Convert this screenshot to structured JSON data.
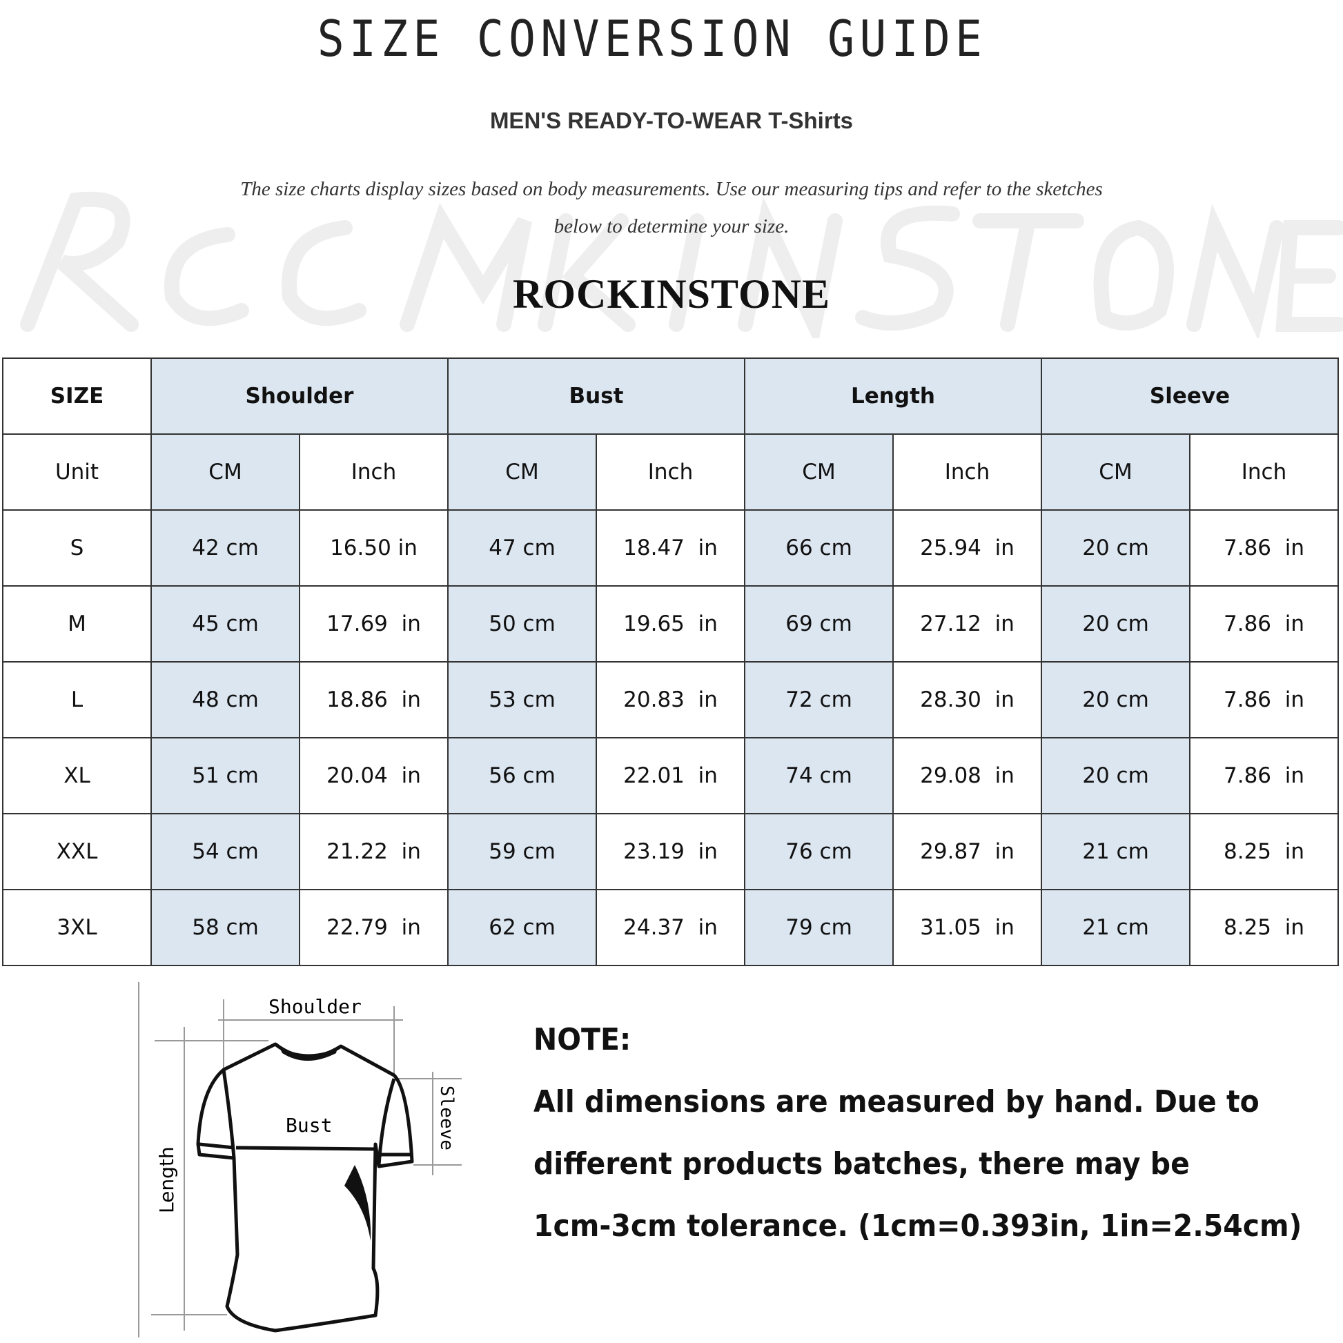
{
  "title": "SIZE CONVERSION GUIDE",
  "subtitle": "MEN'S READY-TO-WEAR T-Shirts",
  "intro": [
    "The size charts display sizes based on body measurements. Use our measuring tips and refer to the sketches",
    "below to determine your size."
  ],
  "watermark": "Rockinstone",
  "brand": "ROCKINSTONE",
  "colors": {
    "header_fill": "#dce6f1",
    "border": "#333333"
  },
  "table": {
    "groups": [
      "SIZE",
      "Shoulder",
      "Bust",
      "Length",
      "Sleeve"
    ],
    "units": [
      "Unit",
      "CM",
      "Inch",
      "CM",
      "Inch",
      "CM",
      "Inch",
      "CM",
      "Inch"
    ],
    "rows": [
      [
        "S",
        "42 cm",
        "16.50 in",
        "47 cm",
        "18.47  in",
        "66 cm",
        "25.94  in",
        "20 cm",
        "7.86  in"
      ],
      [
        "M",
        "45 cm",
        "17.69  in",
        "50 cm",
        "19.65  in",
        "69 cm",
        "27.12  in",
        "20 cm",
        "7.86  in"
      ],
      [
        "L",
        "48 cm",
        "18.86  in",
        "53 cm",
        "20.83  in",
        "72 cm",
        "28.30  in",
        "20 cm",
        "7.86  in"
      ],
      [
        "XL",
        "51 cm",
        "20.04  in",
        "56 cm",
        "22.01  in",
        "74 cm",
        "29.08  in",
        "20 cm",
        "7.86  in"
      ],
      [
        "XXL",
        "54 cm",
        "21.22  in",
        "59 cm",
        "23.19  in",
        "76 cm",
        "29.87  in",
        "21 cm",
        "8.25  in"
      ],
      [
        "3XL",
        "58 cm",
        "22.79  in",
        "62 cm",
        "24.37  in",
        "79 cm",
        "31.05  in",
        "21 cm",
        "8.25  in"
      ]
    ]
  },
  "diagram": {
    "labels": {
      "shoulder": "Shoulder",
      "bust": "Bust",
      "length": "Length",
      "sleeve": "Sleeve"
    }
  },
  "note": {
    "heading": "NOTE:",
    "lines": [
      "All dimensions are measured by hand. Due to",
      "different products batches, there may be",
      "1cm-3cm tolerance. (1cm=0.393in, 1in=2.54cm)"
    ]
  }
}
